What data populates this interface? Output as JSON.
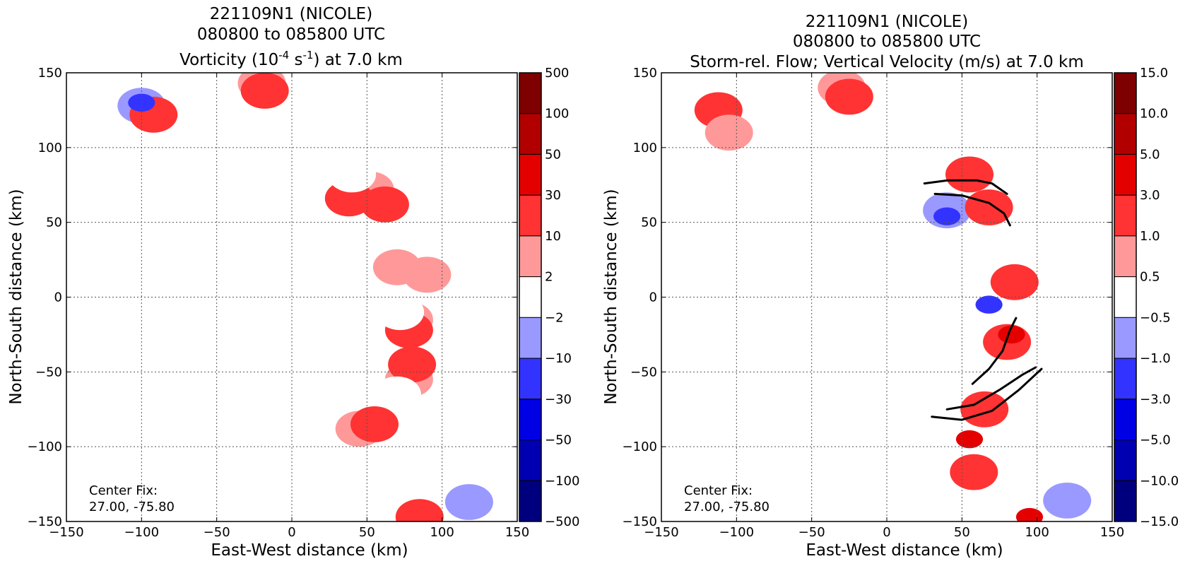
{
  "panels": [
    {
      "id": "vorticity",
      "title_lines": [
        "221109N1 (NICOLE)",
        "080800 to 085800 UTC"
      ],
      "title_line3": {
        "pre": "Vorticity (10",
        "sup1": "-4",
        "mid": " s",
        "sup2": "-1",
        "post": ") at 7.0 km"
      },
      "xlabel": "East-West distance (km)",
      "ylabel": "North-South distance (km)",
      "center_fix_label": "Center Fix:",
      "center_fix_value": "27.00, -75.80",
      "colorbar_labels": [
        "500",
        "100",
        "50",
        "30",
        "10",
        "2",
        "−2",
        "−10",
        "−30",
        "−50",
        "−100",
        "−500"
      ]
    },
    {
      "id": "vertical_velocity",
      "title_lines": [
        "221109N1 (NICOLE)",
        "080800 to 085800 UTC",
        "Storm-rel. Flow; Vertical Velocity (m/s) at 7.0 km"
      ],
      "xlabel": "East-West distance (km)",
      "ylabel": "North-South distance (km)",
      "center_fix_label": "Center Fix:",
      "center_fix_value": "27.00, -75.80",
      "colorbar_labels": [
        "15.0",
        "10.0",
        "5.0",
        "3.0",
        "1.0",
        "0.5",
        "−0.5",
        "−1.0",
        "−3.0",
        "−5.0",
        "−10.0",
        "−15.0"
      ]
    }
  ],
  "chart_data": [
    {
      "type": "heatmap",
      "title": "221109N1 (NICOLE) 080800 to 085800 UTC Vorticity (10^-4 s^-1) at 7.0 km",
      "xlabel": "East-West distance (km)",
      "ylabel": "North-South distance (km)",
      "xlim": [
        -150,
        150
      ],
      "ylim": [
        -150,
        150
      ],
      "xticks": [
        -150,
        -100,
        -50,
        0,
        50,
        100,
        150
      ],
      "yticks": [
        -150,
        -100,
        -50,
        0,
        50,
        100,
        150
      ],
      "grid": true,
      "colorbar_levels": [
        -500,
        -100,
        -50,
        -30,
        -10,
        -2,
        2,
        10,
        30,
        50,
        100,
        500
      ],
      "colorbar_colors": [
        "#00007f",
        "#0000b2",
        "#0000e5",
        "#3333ff",
        "#9999ff",
        "#ffffff",
        "#ff9999",
        "#ff3333",
        "#e50000",
        "#b20000",
        "#7f0000"
      ],
      "annotations": [
        "Center Fix:",
        "27.00, -75.80"
      ],
      "features": [
        {
          "x": -100,
          "y": 128,
          "level": -10
        },
        {
          "x": -92,
          "y": 122,
          "level": 10
        },
        {
          "x": -100,
          "y": 130,
          "level": -30
        },
        {
          "x": -20,
          "y": 143,
          "level": 2
        },
        {
          "x": -18,
          "y": 138,
          "level": 10
        },
        {
          "x": 52,
          "y": 72,
          "level": 2
        },
        {
          "x": 38,
          "y": 66,
          "level": 10
        },
        {
          "x": 62,
          "y": 62,
          "level": 10
        },
        {
          "x": 40,
          "y": 82,
          "level": -2
        },
        {
          "x": 90,
          "y": 15,
          "level": 2
        },
        {
          "x": 70,
          "y": 20,
          "level": 2
        },
        {
          "x": 78,
          "y": -15,
          "level": 2
        },
        {
          "x": 78,
          "y": -22,
          "level": 10
        },
        {
          "x": 72,
          "y": -10,
          "level": -2
        },
        {
          "x": 78,
          "y": -55,
          "level": 2
        },
        {
          "x": 80,
          "y": -45,
          "level": 10
        },
        {
          "x": 70,
          "y": -65,
          "level": -2
        },
        {
          "x": 45,
          "y": -88,
          "level": 2
        },
        {
          "x": 55,
          "y": -85,
          "level": 10
        },
        {
          "x": 85,
          "y": -147,
          "level": 10
        },
        {
          "x": 118,
          "y": -137,
          "level": -10
        }
      ]
    },
    {
      "type": "heatmap",
      "title": "221109N1 (NICOLE) 080800 to 085800 UTC Storm-rel. Flow; Vertical Velocity (m/s) at 7.0 km",
      "xlabel": "East-West distance (km)",
      "ylabel": "North-South distance (km)",
      "xlim": [
        -150,
        150
      ],
      "ylim": [
        -150,
        150
      ],
      "xticks": [
        -150,
        -100,
        -50,
        0,
        50,
        100,
        150
      ],
      "yticks": [
        -150,
        -100,
        -50,
        0,
        50,
        100,
        150
      ],
      "grid": true,
      "colorbar_levels": [
        -15.0,
        -10.0,
        -5.0,
        -3.0,
        -1.0,
        -0.5,
        0.5,
        1.0,
        3.0,
        5.0,
        10.0,
        15.0
      ],
      "colorbar_colors": [
        "#00007f",
        "#0000b2",
        "#0000e5",
        "#3333ff",
        "#9999ff",
        "#ffffff",
        "#ff9999",
        "#ff3333",
        "#e50000",
        "#b20000",
        "#7f0000"
      ],
      "annotations": [
        "Center Fix:",
        "27.00, -75.80"
      ],
      "features": [
        {
          "x": -112,
          "y": 125,
          "level": 1.0
        },
        {
          "x": -105,
          "y": 110,
          "level": 0.5
        },
        {
          "x": -30,
          "y": 140,
          "level": 0.5
        },
        {
          "x": -25,
          "y": 134,
          "level": 1.0
        },
        {
          "x": 55,
          "y": 82,
          "level": 1.0
        },
        {
          "x": 40,
          "y": 58,
          "level": -1.0
        },
        {
          "x": 40,
          "y": 54,
          "level": -3.0
        },
        {
          "x": 68,
          "y": 60,
          "level": 1.0
        },
        {
          "x": 85,
          "y": 10,
          "level": 1.0
        },
        {
          "x": 80,
          "y": -30,
          "level": 1.0
        },
        {
          "x": 83,
          "y": -25,
          "level": 3.0
        },
        {
          "x": 68,
          "y": -5,
          "level": -3.0
        },
        {
          "x": 65,
          "y": -75,
          "level": 1.0
        },
        {
          "x": 55,
          "y": -95,
          "level": 3.0
        },
        {
          "x": 58,
          "y": -117,
          "level": 1.0
        },
        {
          "x": 95,
          "y": -147,
          "level": 3.0
        },
        {
          "x": 120,
          "y": -136,
          "level": -1.0
        }
      ],
      "streamlines": [
        [
          [
            25,
            76
          ],
          [
            40,
            78
          ],
          [
            60,
            78
          ],
          [
            70,
            76
          ],
          [
            80,
            69
          ]
        ],
        [
          [
            32,
            69
          ],
          [
            50,
            68
          ],
          [
            68,
            63
          ],
          [
            78,
            56
          ],
          [
            82,
            48
          ]
        ],
        [
          [
            30,
            -80
          ],
          [
            50,
            -82
          ],
          [
            70,
            -76
          ],
          [
            88,
            -62
          ],
          [
            103,
            -48
          ]
        ],
        [
          [
            40,
            -75
          ],
          [
            58,
            -72
          ],
          [
            75,
            -62
          ],
          [
            90,
            -52
          ],
          [
            99,
            -47
          ]
        ],
        [
          [
            57,
            -58
          ],
          [
            68,
            -48
          ],
          [
            77,
            -36
          ],
          [
            82,
            -22
          ],
          [
            86,
            -14
          ]
        ]
      ]
    }
  ]
}
